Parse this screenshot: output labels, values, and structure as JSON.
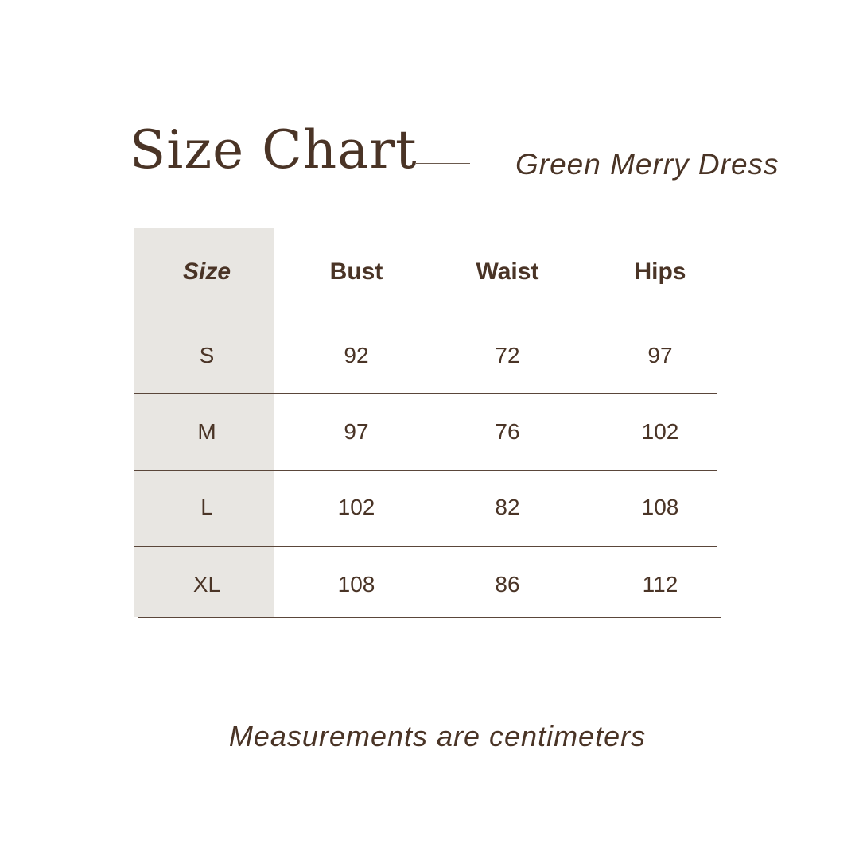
{
  "title": "Size Chart",
  "subtitle": "Green Merry Dress",
  "table": {
    "headers": [
      "Size",
      "Bust",
      "Waist",
      "Hips"
    ],
    "rows": [
      [
        "S",
        "92",
        "72",
        "97"
      ],
      [
        "M",
        "97",
        "76",
        "102"
      ],
      [
        "L",
        "102",
        "82",
        "108"
      ],
      [
        "XL",
        "108",
        "86",
        "112"
      ]
    ]
  },
  "footer": "Measurements are centimeters",
  "colors": {
    "text": "#4a3426",
    "size_column": "#e8e6e2",
    "rule": "#5a463a"
  }
}
